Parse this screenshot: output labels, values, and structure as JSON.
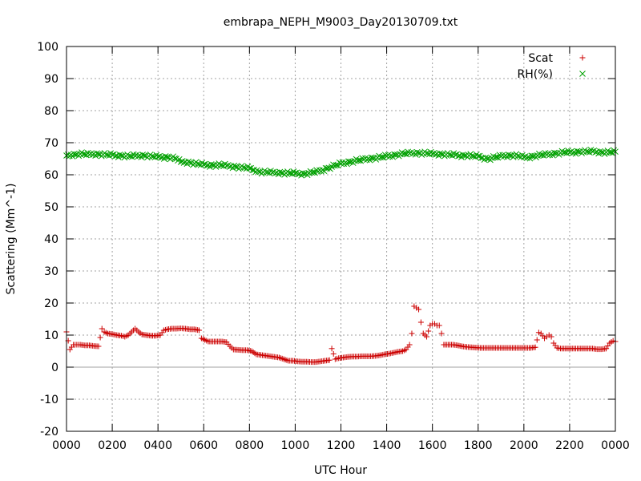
{
  "chart_data": {
    "type": "scatter",
    "title": "embrapa_NEPH_M9003_Day20130709.txt",
    "xlabel": "UTC Hour",
    "ylabel": "Scattering (Mm^-1)",
    "xlim": [
      0,
      2400
    ],
    "ylim": [
      -20,
      100
    ],
    "grid": true,
    "legend_position": "top-right",
    "zero_line": true,
    "x_ticks": [
      "0000",
      "0200",
      "0400",
      "0600",
      "0800",
      "1000",
      "1200",
      "1400",
      "1600",
      "1800",
      "2000",
      "2200",
      "0000"
    ],
    "y_ticks": [
      "-20",
      "-10",
      "0",
      "10",
      "20",
      "30",
      "40",
      "50",
      "60",
      "70",
      "80",
      "90",
      "100"
    ],
    "series": [
      {
        "name": "Scat",
        "marker": "plus",
        "color": "#cc0000",
        "points": [
          [
            0,
            11
          ],
          [
            15,
            5.5
          ],
          [
            30,
            7
          ],
          [
            45,
            7
          ],
          [
            60,
            7
          ],
          [
            80,
            6.8
          ],
          [
            100,
            6.8
          ],
          [
            120,
            6.6
          ],
          [
            140,
            6.5
          ],
          [
            155,
            12
          ],
          [
            165,
            11
          ],
          [
            180,
            10.5
          ],
          [
            200,
            10.3
          ],
          [
            220,
            10
          ],
          [
            240,
            9.8
          ],
          [
            255,
            9.5
          ],
          [
            270,
            10
          ],
          [
            285,
            11
          ],
          [
            300,
            12
          ],
          [
            315,
            11
          ],
          [
            330,
            10.2
          ],
          [
            350,
            10
          ],
          [
            370,
            9.8
          ],
          [
            390,
            9.8
          ],
          [
            410,
            10
          ],
          [
            425,
            11.5
          ],
          [
            440,
            11.8
          ],
          [
            460,
            12
          ],
          [
            480,
            12
          ],
          [
            500,
            12.1
          ],
          [
            520,
            12
          ],
          [
            540,
            11.8
          ],
          [
            560,
            11.8
          ],
          [
            580,
            11.5
          ],
          [
            590,
            9
          ],
          [
            605,
            8.5
          ],
          [
            620,
            8
          ],
          [
            640,
            8
          ],
          [
            660,
            8
          ],
          [
            680,
            8
          ],
          [
            700,
            7.8
          ],
          [
            715,
            6.5
          ],
          [
            730,
            5.5
          ],
          [
            750,
            5.4
          ],
          [
            770,
            5.3
          ],
          [
            790,
            5.3
          ],
          [
            810,
            5
          ],
          [
            830,
            4
          ],
          [
            850,
            3.8
          ],
          [
            870,
            3.6
          ],
          [
            890,
            3.4
          ],
          [
            910,
            3.2
          ],
          [
            930,
            3
          ],
          [
            950,
            2.5
          ],
          [
            970,
            2
          ],
          [
            990,
            2
          ],
          [
            1010,
            1.8
          ],
          [
            1030,
            1.7
          ],
          [
            1050,
            1.7
          ],
          [
            1070,
            1.6
          ],
          [
            1090,
            1.6
          ],
          [
            1110,
            1.8
          ],
          [
            1130,
            2
          ],
          [
            1150,
            2.2
          ],
          [
            1160,
            5.8
          ],
          [
            1175,
            2.5
          ],
          [
            1190,
            2.8
          ],
          [
            1210,
            3
          ],
          [
            1230,
            3.2
          ],
          [
            1250,
            3.3
          ],
          [
            1270,
            3.3
          ],
          [
            1290,
            3.4
          ],
          [
            1310,
            3.4
          ],
          [
            1330,
            3.4
          ],
          [
            1350,
            3.5
          ],
          [
            1370,
            3.7
          ],
          [
            1390,
            4
          ],
          [
            1410,
            4.2
          ],
          [
            1430,
            4.5
          ],
          [
            1450,
            4.8
          ],
          [
            1470,
            5
          ],
          [
            1485,
            5.5
          ],
          [
            1500,
            7
          ],
          [
            1510,
            10.5
          ],
          [
            1520,
            19
          ],
          [
            1530,
            18.5
          ],
          [
            1540,
            18
          ],
          [
            1550,
            14
          ],
          [
            1560,
            10.5
          ],
          [
            1575,
            9.5
          ],
          [
            1590,
            13
          ],
          [
            1600,
            13.5
          ],
          [
            1610,
            13.5
          ],
          [
            1620,
            13
          ],
          [
            1630,
            13
          ],
          [
            1640,
            10.5
          ],
          [
            1650,
            7
          ],
          [
            1670,
            7
          ],
          [
            1690,
            7
          ],
          [
            1710,
            6.8
          ],
          [
            1730,
            6.5
          ],
          [
            1750,
            6.3
          ],
          [
            1770,
            6.2
          ],
          [
            1790,
            6.1
          ],
          [
            1810,
            6
          ],
          [
            1830,
            6
          ],
          [
            1850,
            6
          ],
          [
            1870,
            6
          ],
          [
            1890,
            6
          ],
          [
            1910,
            6
          ],
          [
            1930,
            6
          ],
          [
            1950,
            6
          ],
          [
            1970,
            6
          ],
          [
            1990,
            6
          ],
          [
            2010,
            6
          ],
          [
            2030,
            6
          ],
          [
            2050,
            6.2
          ],
          [
            2065,
            10.8
          ],
          [
            2075,
            10.5
          ],
          [
            2090,
            9
          ],
          [
            2100,
            9.5
          ],
          [
            2110,
            10
          ],
          [
            2120,
            9.5
          ],
          [
            2130,
            7.5
          ],
          [
            2145,
            6
          ],
          [
            2160,
            5.8
          ],
          [
            2180,
            5.8
          ],
          [
            2200,
            5.8
          ],
          [
            2220,
            5.8
          ],
          [
            2240,
            5.8
          ],
          [
            2260,
            5.8
          ],
          [
            2280,
            5.8
          ],
          [
            2300,
            5.8
          ],
          [
            2320,
            5.6
          ],
          [
            2340,
            5.6
          ],
          [
            2360,
            5.8
          ],
          [
            2375,
            7.5
          ],
          [
            2390,
            8.2
          ],
          [
            2400,
            8
          ]
        ]
      },
      {
        "name": "RH(%)",
        "marker": "cross",
        "color": "#00a000",
        "points": [
          [
            0,
            66
          ],
          [
            20,
            66.2
          ],
          [
            40,
            66.3
          ],
          [
            60,
            66.5
          ],
          [
            80,
            66.4
          ],
          [
            100,
            66.3
          ],
          [
            120,
            66.5
          ],
          [
            140,
            66.4
          ],
          [
            160,
            66.3
          ],
          [
            180,
            66.2
          ],
          [
            200,
            66.2
          ],
          [
            220,
            66
          ],
          [
            240,
            66
          ],
          [
            260,
            65.8
          ],
          [
            280,
            65.8
          ],
          [
            300,
            65.9
          ],
          [
            320,
            66
          ],
          [
            340,
            66
          ],
          [
            360,
            65.8
          ],
          [
            380,
            65.7
          ],
          [
            400,
            65.6
          ],
          [
            420,
            65.5
          ],
          [
            440,
            65.5
          ],
          [
            460,
            65.3
          ],
          [
            480,
            65
          ],
          [
            500,
            64
          ],
          [
            520,
            64
          ],
          [
            540,
            63.8
          ],
          [
            560,
            63.5
          ],
          [
            580,
            63.3
          ],
          [
            600,
            63.2
          ],
          [
            620,
            63
          ],
          [
            640,
            63
          ],
          [
            660,
            63
          ],
          [
            680,
            63
          ],
          [
            700,
            62.8
          ],
          [
            720,
            62.7
          ],
          [
            740,
            62.5
          ],
          [
            760,
            62.3
          ],
          [
            780,
            62.2
          ],
          [
            800,
            62
          ],
          [
            820,
            61.5
          ],
          [
            840,
            61
          ],
          [
            860,
            60.8
          ],
          [
            880,
            60.8
          ],
          [
            900,
            60.7
          ],
          [
            920,
            60.7
          ],
          [
            940,
            60.6
          ],
          [
            960,
            60.5
          ],
          [
            980,
            60.5
          ],
          [
            1000,
            60.5
          ],
          [
            1020,
            60.3
          ],
          [
            1040,
            60.3
          ],
          [
            1060,
            60.5
          ],
          [
            1080,
            60.8
          ],
          [
            1100,
            61
          ],
          [
            1120,
            61.5
          ],
          [
            1140,
            62
          ],
          [
            1160,
            62.5
          ],
          [
            1180,
            63
          ],
          [
            1200,
            63.5
          ],
          [
            1220,
            63.8
          ],
          [
            1240,
            64
          ],
          [
            1260,
            64.3
          ],
          [
            1280,
            64.5
          ],
          [
            1300,
            64.8
          ],
          [
            1320,
            65
          ],
          [
            1340,
            65.2
          ],
          [
            1360,
            65.3
          ],
          [
            1380,
            65.5
          ],
          [
            1400,
            65.8
          ],
          [
            1420,
            66
          ],
          [
            1440,
            66.2
          ],
          [
            1460,
            66.4
          ],
          [
            1480,
            66.6
          ],
          [
            1500,
            66.7
          ],
          [
            1520,
            66.8
          ],
          [
            1540,
            66.8
          ],
          [
            1560,
            66.7
          ],
          [
            1580,
            66.7
          ],
          [
            1600,
            66.5
          ],
          [
            1620,
            66.5
          ],
          [
            1640,
            66.4
          ],
          [
            1660,
            66.3
          ],
          [
            1680,
            66.2
          ],
          [
            1700,
            66.2
          ],
          [
            1720,
            66
          ],
          [
            1740,
            66
          ],
          [
            1760,
            66
          ],
          [
            1780,
            65.8
          ],
          [
            1800,
            65.8
          ],
          [
            1820,
            65.3
          ],
          [
            1840,
            65
          ],
          [
            1860,
            65.2
          ],
          [
            1880,
            65.5
          ],
          [
            1900,
            65.8
          ],
          [
            1920,
            66
          ],
          [
            1940,
            66
          ],
          [
            1960,
            66
          ],
          [
            1980,
            65.8
          ],
          [
            2000,
            65.5
          ],
          [
            2020,
            65.5
          ],
          [
            2040,
            65.8
          ],
          [
            2060,
            66
          ],
          [
            2080,
            66.2
          ],
          [
            2100,
            66.3
          ],
          [
            2120,
            66.5
          ],
          [
            2140,
            66.7
          ],
          [
            2160,
            66.8
          ],
          [
            2180,
            67
          ],
          [
            2200,
            67
          ],
          [
            2220,
            67
          ],
          [
            2240,
            67.2
          ],
          [
            2260,
            67.2
          ],
          [
            2280,
            67.2
          ],
          [
            2300,
            67.3
          ],
          [
            2320,
            67.2
          ],
          [
            2340,
            67
          ],
          [
            2360,
            67
          ],
          [
            2380,
            67
          ],
          [
            2400,
            67.2
          ]
        ]
      }
    ]
  }
}
